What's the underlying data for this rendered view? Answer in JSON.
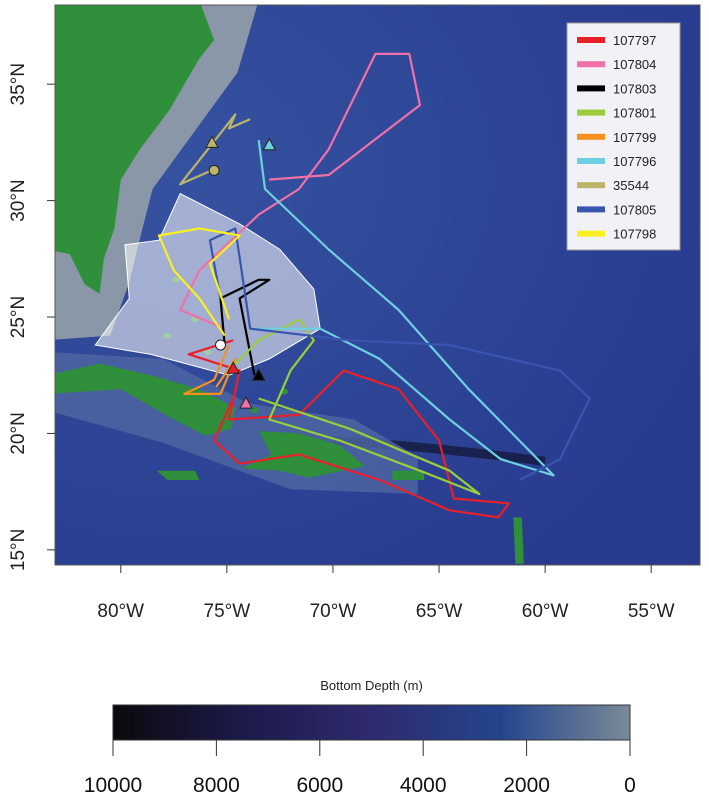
{
  "map": {
    "lon_range": [
      -83.1,
      -52.7
    ],
    "lat_range": [
      14.35,
      38.4
    ],
    "lon_ticks": [
      {
        "v": -80,
        "label": "80°W"
      },
      {
        "v": -75,
        "label": "75°W"
      },
      {
        "v": -70,
        "label": "70°W"
      },
      {
        "v": -65,
        "label": "65°W"
      },
      {
        "v": -60,
        "label": "60°W"
      },
      {
        "v": -55,
        "label": "55°W"
      }
    ],
    "lat_ticks": [
      {
        "v": 15,
        "label": "15°N"
      },
      {
        "v": 20,
        "label": "20°N"
      },
      {
        "v": 25,
        "label": "25°N"
      },
      {
        "v": 30,
        "label": "30°N"
      },
      {
        "v": 35,
        "label": "35°N"
      }
    ],
    "colors": {
      "ocean": "#283a8e",
      "land": "#2f8f3a",
      "shelf": "#8a97a8",
      "study_area": "#ffffff"
    },
    "tracks": [
      {
        "id": "107797",
        "color": "#e8202a",
        "points": [
          [
            -74.7,
            24.0
          ],
          [
            -76.8,
            23.4
          ],
          [
            -74.4,
            22.7
          ],
          [
            -74.9,
            20.6
          ],
          [
            -71.6,
            20.8
          ],
          [
            -69.5,
            22.7
          ],
          [
            -66.9,
            21.9
          ],
          [
            -65.0,
            19.7
          ],
          [
            -64.3,
            17.2
          ],
          [
            -61.7,
            17.0
          ],
          [
            -62.2,
            16.4
          ],
          [
            -64.5,
            16.7
          ],
          [
            -67.8,
            18.0
          ],
          [
            -71.6,
            19.1
          ],
          [
            -74.4,
            18.7
          ],
          [
            -75.6,
            19.7
          ],
          [
            -74.6,
            21.7
          ]
        ]
      },
      {
        "id": "107804",
        "color": "#f070a8",
        "points": [
          [
            -75.1,
            24.5
          ],
          [
            -77.2,
            25.3
          ],
          [
            -76.3,
            27.0
          ],
          [
            -73.5,
            29.4
          ],
          [
            -71.6,
            30.5
          ],
          [
            -70.2,
            32.2
          ],
          [
            -68.0,
            36.3
          ],
          [
            -66.4,
            36.3
          ],
          [
            -65.9,
            34.1
          ],
          [
            -70.2,
            31.1
          ],
          [
            -73.0,
            30.9
          ]
        ]
      },
      {
        "id": "107803",
        "color": "#000000",
        "points": [
          [
            -75.1,
            23.8
          ],
          [
            -75.3,
            25.8
          ],
          [
            -73.5,
            26.6
          ],
          [
            -73.0,
            26.6
          ],
          [
            -74.4,
            25.8
          ],
          [
            -73.7,
            22.5
          ]
        ]
      },
      {
        "id": "107801",
        "color": "#9acd3c",
        "points": [
          [
            -74.9,
            22.7
          ],
          [
            -73.5,
            24.0
          ],
          [
            -71.6,
            24.9
          ],
          [
            -70.9,
            24.0
          ],
          [
            -72.0,
            22.7
          ],
          [
            -73.0,
            20.6
          ],
          [
            -69.7,
            19.7
          ],
          [
            -65.9,
            18.4
          ],
          [
            -63.1,
            17.4
          ],
          [
            -64.5,
            18.4
          ],
          [
            -69.2,
            20.2
          ],
          [
            -73.5,
            21.5
          ]
        ]
      },
      {
        "id": "107799",
        "color": "#f5901e",
        "points": [
          [
            -74.9,
            23.8
          ],
          [
            -75.6,
            22.3
          ],
          [
            -77.0,
            21.7
          ],
          [
            -75.3,
            21.7
          ],
          [
            -74.6,
            23.2
          ],
          [
            -75.5,
            22.0
          ]
        ]
      },
      {
        "id": "107796",
        "color": "#6cd0e0",
        "points": [
          [
            -73.5,
            32.6
          ],
          [
            -73.2,
            30.5
          ],
          [
            -70.2,
            27.9
          ],
          [
            -66.9,
            25.3
          ],
          [
            -63.6,
            21.9
          ],
          [
            -59.6,
            18.2
          ],
          [
            -62.1,
            18.9
          ],
          [
            -64.5,
            20.6
          ],
          [
            -67.8,
            23.2
          ],
          [
            -70.6,
            24.5
          ],
          [
            -73.9,
            24.5
          ]
        ]
      },
      {
        "id": "35544",
        "color": "#bdb36a",
        "points": [
          [
            -75.7,
            31.3
          ],
          [
            -77.2,
            30.7
          ],
          [
            -75.9,
            32.2
          ],
          [
            -74.6,
            33.7
          ],
          [
            -74.9,
            33.1
          ],
          [
            -73.9,
            33.5
          ]
        ]
      },
      {
        "id": "107805",
        "color": "#3a55b0",
        "points": [
          [
            -75.3,
            25.8
          ],
          [
            -75.8,
            28.3
          ],
          [
            -74.6,
            28.8
          ],
          [
            -73.9,
            24.5
          ],
          [
            -69.2,
            24.0
          ],
          [
            -64.5,
            23.8
          ],
          [
            -59.3,
            22.7
          ],
          [
            -57.9,
            21.5
          ],
          [
            -59.3,
            18.9
          ],
          [
            -61.2,
            18.0
          ]
        ]
      },
      {
        "id": "107798",
        "color": "#f8f020",
        "points": [
          [
            -75.1,
            24.2
          ],
          [
            -76.3,
            25.8
          ],
          [
            -77.5,
            27.0
          ],
          [
            -78.2,
            28.5
          ],
          [
            -76.3,
            28.8
          ],
          [
            -74.4,
            28.5
          ],
          [
            -75.8,
            27.3
          ],
          [
            -74.9,
            24.9
          ]
        ]
      }
    ],
    "markers": [
      {
        "shape": "triangle",
        "color": "#bdb36a",
        "lon": -75.7,
        "lat": 32.5
      },
      {
        "shape": "circle",
        "color": "#bdb36a",
        "lon": -75.6,
        "lat": 31.3
      },
      {
        "shape": "triangle",
        "color": "#6cd0e0",
        "lon": -73.0,
        "lat": 32.4
      },
      {
        "shape": "triangle",
        "color": "#000000",
        "lon": -73.5,
        "lat": 22.5
      },
      {
        "shape": "circle",
        "color": "#ffffff",
        "lon": -75.3,
        "lat": 23.8
      },
      {
        "shape": "triangle",
        "color": "#f070a8",
        "lon": -74.1,
        "lat": 21.3
      },
      {
        "shape": "triangle",
        "color": "#e8202a",
        "lon": -74.7,
        "lat": 22.8
      }
    ]
  },
  "legend": {
    "placement": "top-right",
    "items": [
      "107797",
      "107804",
      "107803",
      "107801",
      "107799",
      "107796",
      "35544",
      "107805",
      "107798"
    ]
  },
  "colorbar": {
    "title": "Bottom Depth (m)",
    "range": [
      10000,
      0
    ],
    "ticks": [
      "10000",
      "8000",
      "6000",
      "4000",
      "2000",
      "0"
    ],
    "stops": [
      "#0a0a0c",
      "#1c1a4a",
      "#2e2a6e",
      "#23458e",
      "#7a8a98"
    ]
  }
}
